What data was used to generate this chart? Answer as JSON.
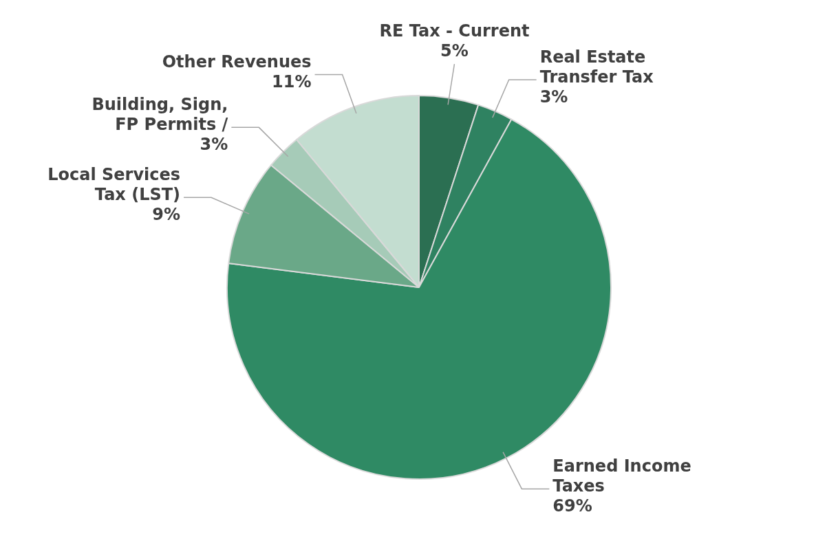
{
  "chart_data": {
    "type": "pie",
    "categories": [
      "RE Tax - Current",
      "Real Estate Transfer Tax",
      "Earned Income Taxes",
      "Local Services Tax (LST)",
      "Building, Sign, FP Permits /",
      "Other Revenues"
    ],
    "values": [
      5,
      3,
      69,
      9,
      3,
      11
    ],
    "colors": [
      "#2b6f52",
      "#2f8261",
      "#2f8a64",
      "#6aa888",
      "#a6cbb8",
      "#c3ddd0"
    ],
    "value_labels": [
      "5%",
      "3%",
      "69%",
      "9%",
      "3%",
      "11%"
    ],
    "legend": false
  }
}
